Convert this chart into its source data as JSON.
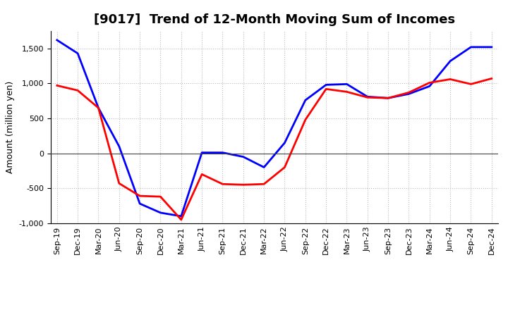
{
  "title": "[9017]  Trend of 12-Month Moving Sum of Incomes",
  "ylabel": "Amount (million yen)",
  "x_labels": [
    "Sep-19",
    "Dec-19",
    "Mar-20",
    "Jun-20",
    "Sep-20",
    "Dec-20",
    "Mar-21",
    "Jun-21",
    "Sep-21",
    "Dec-21",
    "Mar-22",
    "Jun-22",
    "Sep-22",
    "Dec-22",
    "Mar-23",
    "Jun-23",
    "Sep-23",
    "Dec-23",
    "Mar-24",
    "Jun-24",
    "Sep-24",
    "Dec-24"
  ],
  "ordinary_income": [
    1620,
    1430,
    650,
    100,
    -720,
    -850,
    -900,
    10,
    10,
    -50,
    -200,
    150,
    760,
    980,
    990,
    810,
    790,
    850,
    960,
    1320,
    1520,
    1520
  ],
  "net_income": [
    970,
    900,
    650,
    -430,
    -610,
    -620,
    -950,
    -300,
    -440,
    -450,
    -440,
    -200,
    480,
    920,
    880,
    800,
    790,
    870,
    1010,
    1060,
    990,
    1070
  ],
  "ordinary_color": "#0000FF",
  "net_color": "#FF0000",
  "ylim": [
    -1000,
    1750
  ],
  "yticks": [
    -1000,
    -500,
    0,
    500,
    1000,
    1500
  ],
  "background_color": "#FFFFFF",
  "grid_color": "#BBBBBB",
  "line_width": 2.0,
  "title_fontsize": 13,
  "legend_fontsize": 10,
  "axis_fontsize": 9,
  "tick_fontsize": 8
}
